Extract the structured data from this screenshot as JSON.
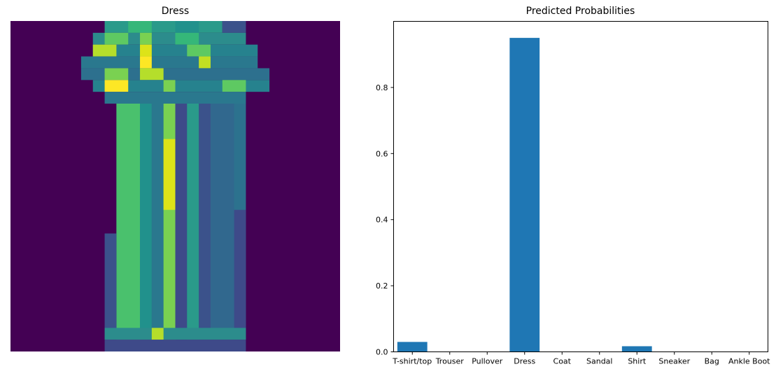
{
  "image_panel": {
    "title": "Dress"
  },
  "chart_data": {
    "type": "bar",
    "title": "Predicted Probabilities",
    "xlabel": "",
    "ylabel": "",
    "categories": [
      "T-shirt/top",
      "Trouser",
      "Pullover",
      "Dress",
      "Coat",
      "Sandal",
      "Shirt",
      "Sneaker",
      "Bag",
      "Ankle Boot"
    ],
    "values": [
      0.03,
      0.001,
      0.001,
      0.95,
      0.001,
      0.0,
      0.017,
      0.0,
      0.001,
      0.0
    ],
    "ylim": [
      0,
      1.0
    ],
    "yticks": [
      0.0,
      0.2,
      0.4,
      0.6,
      0.8
    ],
    "ytick_labels": [
      "0.0",
      "0.2",
      "0.4",
      "0.6",
      "0.8"
    ],
    "bar_color": "#1f77b4",
    "grid": false
  },
  "colors": {
    "background": "#440154",
    "bar": "#1f77b4"
  }
}
